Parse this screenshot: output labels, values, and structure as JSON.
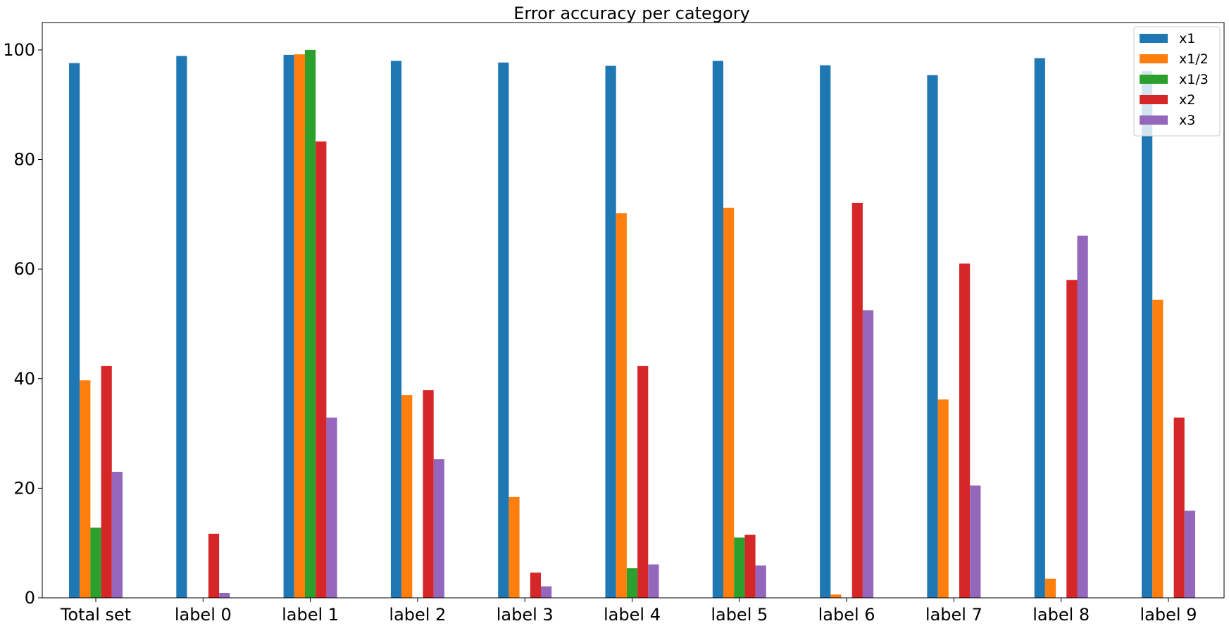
{
  "chart_data": {
    "type": "bar",
    "title": "Error accuracy per category",
    "xlabel": "",
    "ylabel": "",
    "ylim": [
      0,
      105
    ],
    "yticks": [
      0,
      20,
      40,
      60,
      80,
      100
    ],
    "grid": false,
    "legend_position": "top-right",
    "categories": [
      "Total set",
      "label 0",
      "label 1",
      "label 2",
      "label 3",
      "label 4",
      "label 5",
      "label 6",
      "label 7",
      "label 8",
      "label 9"
    ],
    "series": [
      {
        "name": "x1",
        "color": "#1f77b4",
        "values": [
          97.6,
          98.9,
          99.1,
          98.0,
          97.7,
          97.1,
          98.0,
          97.2,
          95.4,
          98.5,
          96.1
        ]
      },
      {
        "name": "x1/2",
        "color": "#ff7f0e",
        "values": [
          39.7,
          0.0,
          99.2,
          37.0,
          18.4,
          70.2,
          71.2,
          0.6,
          36.2,
          3.5,
          54.4
        ]
      },
      {
        "name": "x1/3",
        "color": "#2ca02c",
        "values": [
          12.8,
          0.0,
          100.0,
          0.0,
          0.0,
          5.4,
          11.0,
          0.0,
          0.0,
          0.0,
          0.0
        ]
      },
      {
        "name": "x2",
        "color": "#d62728",
        "values": [
          42.3,
          11.7,
          83.3,
          37.9,
          4.6,
          42.3,
          11.5,
          72.1,
          61.0,
          58.0,
          32.9
        ]
      },
      {
        "name": "x3",
        "color": "#9467bd",
        "values": [
          23.0,
          0.9,
          32.9,
          25.3,
          2.1,
          6.1,
          5.9,
          52.5,
          20.5,
          66.1,
          15.9
        ]
      }
    ]
  }
}
